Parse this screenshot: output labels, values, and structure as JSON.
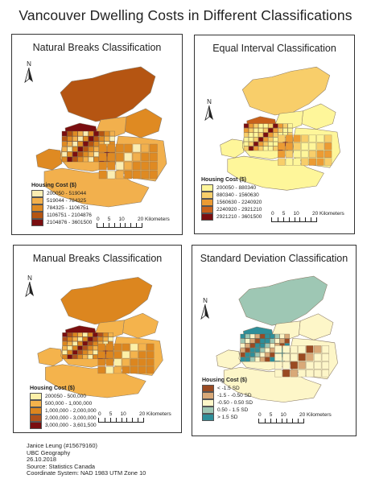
{
  "title": "Vancouver Dwelling Costs in Different Classifications",
  "north_label": "N",
  "panels": [
    {
      "title": "Natural Breaks Classification",
      "legend_title": "Housing Cost ($)",
      "classes": [
        {
          "label": "200050 - 519044",
          "color": "#fbedb2"
        },
        {
          "label": "519044 - 784325",
          "color": "#f2b04d"
        },
        {
          "label": "784325 - 1106751",
          "color": "#df8a22"
        },
        {
          "label": "1106751 - 2104876",
          "color": "#b55512"
        },
        {
          "label": "2104876 - 3601500",
          "color": "#7a0e10"
        }
      ],
      "scale": {
        "t0": "0",
        "t1": "5",
        "t2": "10",
        "t3": "20",
        "unit": "Kilometers"
      }
    },
    {
      "title": "Equal Interval Classification",
      "legend_title": "Housing Cost ($)",
      "classes": [
        {
          "label": "200050 - 880340",
          "color": "#fef69a"
        },
        {
          "label": "880340 - 1560630",
          "color": "#f8ce6a"
        },
        {
          "label": "1560630 - 2240920",
          "color": "#ec9b33"
        },
        {
          "label": "2240920 - 2921210",
          "color": "#c8601a"
        },
        {
          "label": "2921210 - 3601500",
          "color": "#7a0e10"
        }
      ],
      "scale": {
        "t0": "0",
        "t1": "5",
        "t2": "10",
        "t3": "20",
        "unit": "Kilometers"
      }
    },
    {
      "title": "Manual Breaks Classification",
      "legend_title": "Housing Cost ($)",
      "classes": [
        {
          "label": "200050 - 500,000",
          "color": "#fdf0a8"
        },
        {
          "label": "500,000 - 1,000,000",
          "color": "#f4b34c"
        },
        {
          "label": "1,000,000 - 2,000,000",
          "color": "#dc861f"
        },
        {
          "label": "2,000,000 - 3,000,000",
          "color": "#b0501a"
        },
        {
          "label": "3,000,000 - 3,601,500",
          "color": "#7a0e10"
        }
      ],
      "scale": {
        "t0": "0",
        "t1": "5",
        "t2": "10",
        "t3": "20",
        "unit": "Kilometers"
      }
    },
    {
      "title": "Standard Deviation Classification",
      "legend_title": "Housing Cost ($)",
      "classes": [
        {
          "label": "< -1.5 SD",
          "color": "#9a4a22"
        },
        {
          "label": "-1.5 - -0.50 SD",
          "color": "#d9a978"
        },
        {
          "label": "-0.50 - 0.50 SD",
          "color": "#fdf6c8"
        },
        {
          "label": "0.50 - 1.5 SD",
          "color": "#9ec7b4"
        },
        {
          "label": "> 1.5 SD",
          "color": "#2e8f9a"
        }
      ],
      "scale": {
        "t0": "0",
        "t1": "5",
        "t2": "10",
        "t3": "20",
        "unit": "Kilometers"
      }
    }
  ],
  "credits": {
    "author": "Janice Leung (#15679160)",
    "course": "UBC Geography",
    "date": "26.10.2018",
    "source": "Source: Statistics Canada",
    "coords": "Coordinate System: NAD 1983 UTM Zone 10"
  }
}
